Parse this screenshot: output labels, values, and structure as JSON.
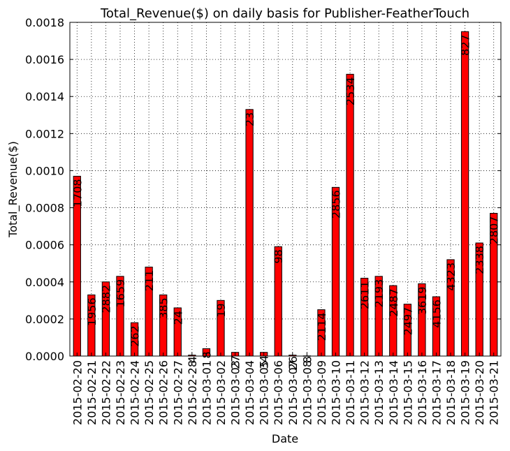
{
  "chart_data": {
    "type": "bar",
    "title": "Total_Revenue($) on daily basis for Publisher-FeatherTouch",
    "xlabel": "Date",
    "ylabel": "Total_Revenue($)",
    "ylim": [
      0,
      0.0018
    ],
    "yticks": [
      "0.0000",
      "0.0002",
      "0.0004",
      "0.0006",
      "0.0008",
      "0.0010",
      "0.0012",
      "0.0014",
      "0.0016",
      "0.0018"
    ],
    "grid": true,
    "bar_color": "#ff0000",
    "categories": [
      "2015-02-20",
      "2015-02-21",
      "2015-02-22",
      "2015-02-23",
      "2015-02-24",
      "2015-02-25",
      "2015-02-26",
      "2015-02-27",
      "2015-02-28",
      "2015-03-01",
      "2015-03-02",
      "2015-03-03",
      "2015-03-04",
      "2015-03-05",
      "2015-03-06",
      "2015-03-07",
      "2015-03-08",
      "2015-03-09",
      "2015-03-10",
      "2015-03-11",
      "2015-03-12",
      "2015-03-13",
      "2015-03-14",
      "2015-03-15",
      "2015-03-16",
      "2015-03-17",
      "2015-03-18",
      "2015-03-19",
      "2015-03-20",
      "2015-03-21"
    ],
    "values": [
      0.00097,
      0.00033,
      0.0004,
      0.00043,
      0.00018,
      0.00048,
      0.00033,
      0.00026,
      5e-06,
      4e-05,
      0.0003,
      2e-05,
      0.00133,
      2e-05,
      0.00059,
      5e-06,
      1e-06,
      0.00025,
      0.00091,
      0.00152,
      0.00042,
      0.00043,
      0.00038,
      0.00028,
      0.00039,
      0.00032,
      0.00052,
      0.00175,
      0.00061,
      0.00077
    ],
    "labels": [
      "1708",
      "1956",
      "2882",
      "1659",
      "262",
      "211",
      "385",
      "24",
      "4",
      "8",
      "19",
      "27",
      "23",
      "34",
      "98",
      "26",
      "8",
      "2114",
      "2856",
      "2534",
      "2611",
      "2193",
      "2487",
      "2497",
      "3619",
      "4156",
      "4323",
      "827",
      "2338",
      "2807"
    ]
  }
}
